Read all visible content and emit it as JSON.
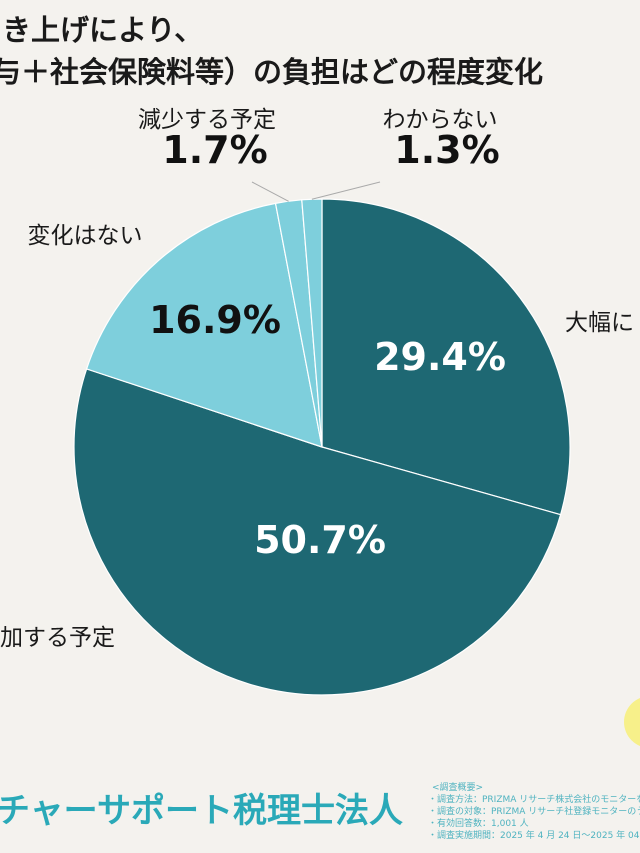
{
  "title_lines": [
    "き上げにより、",
    "与＋社会保険料等）の負担はどの程度変化"
  ],
  "chart_data": {
    "type": "pie",
    "categories": [
      "大幅に",
      "加する予定",
      "変化はない",
      "減少する予定",
      "わからない"
    ],
    "values": [
      29.4,
      50.7,
      16.9,
      1.7,
      1.3
    ],
    "value_labels": [
      "29.4%",
      "50.7%",
      "16.9%",
      "1.7%",
      "1.3%"
    ],
    "colors": [
      "#1e6873",
      "#1e6873",
      "#7ecfdc",
      "#7ecfdc",
      "#7ecfdc"
    ]
  },
  "footer": {
    "org": "チャーサポート税理士法人",
    "notes": [
      "<調査概要>",
      "・調査方法：PRIZMA リサーチ株式会社のモニターを利",
      "・調査の対象：PRIZMA リサーチ社登録モニターのう",
      "・有効回答数：1,001 人",
      "・調査実施期間：2025 年 4 月 24 日～2025 年 04 月 2"
    ]
  }
}
